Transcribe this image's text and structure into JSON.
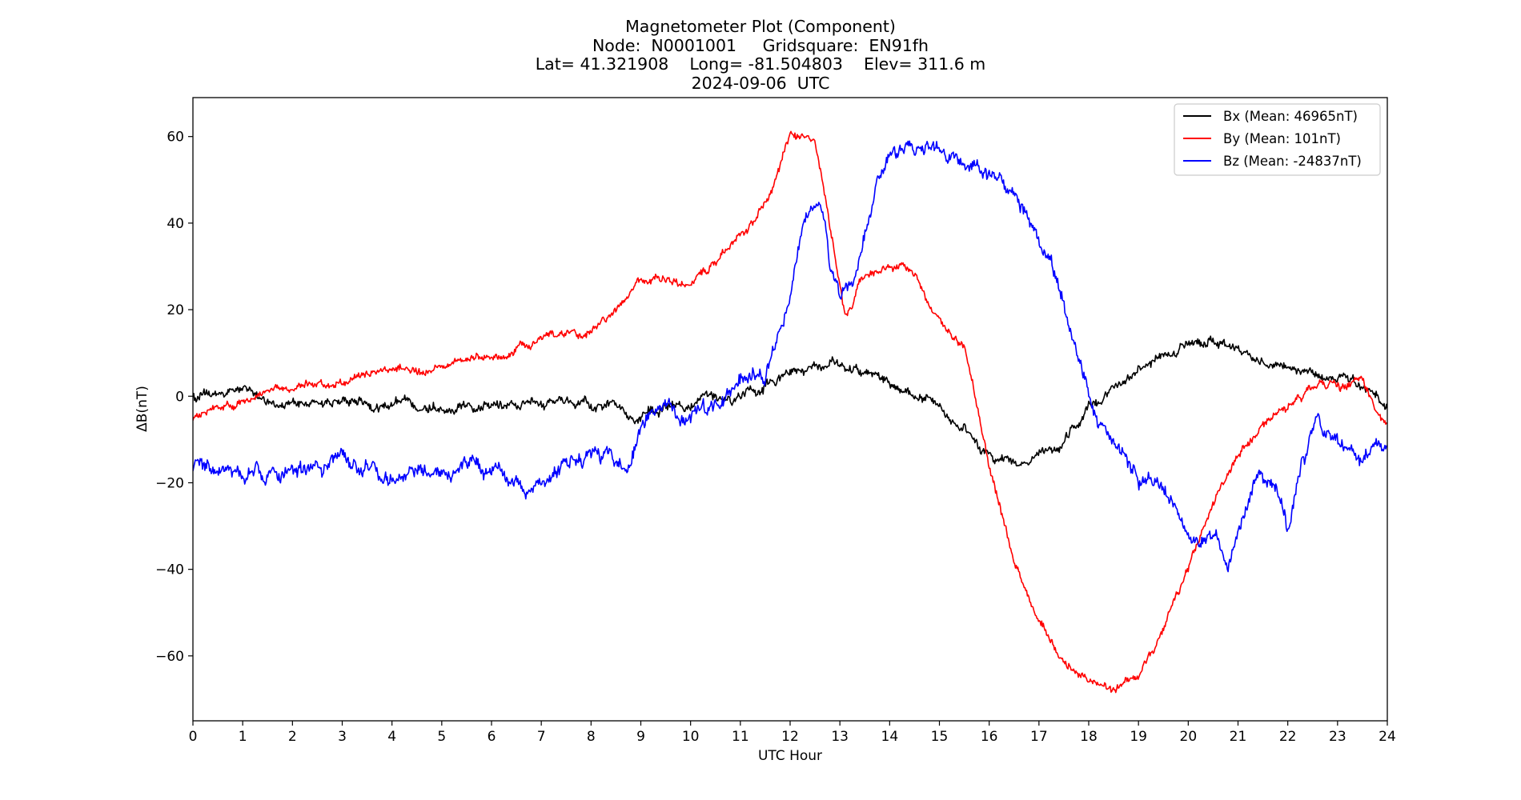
{
  "chart_data": {
    "type": "line",
    "title_lines": [
      "Magnetometer Plot (Component)",
      "Node:  N0001001     Gridsquare:  EN91fh",
      "Lat= 41.321908    Long= -81.504803    Elev= 311.6 m",
      "2024-09-06  UTC"
    ],
    "xlabel": "UTC Hour",
    "ylabel": "ΔB(nT)",
    "xlim": [
      0,
      24
    ],
    "ylim": [
      -75,
      69
    ],
    "xticks": [
      0,
      1,
      2,
      3,
      4,
      5,
      6,
      7,
      8,
      9,
      10,
      11,
      12,
      13,
      14,
      15,
      16,
      17,
      18,
      19,
      20,
      21,
      22,
      23,
      24
    ],
    "yticks": [
      -60,
      -40,
      -20,
      0,
      20,
      40,
      60
    ],
    "ytick_labels": [
      "−60",
      "−40",
      "−20",
      "0",
      "20",
      "40",
      "60"
    ],
    "grid": false,
    "legend_position": "top-right",
    "series": [
      {
        "name": "Bx (Mean: 46965nT)",
        "color": "#000000",
        "noise": 1.2,
        "x": [
          0,
          0.5,
          1,
          1.5,
          2,
          2.5,
          3,
          3.5,
          4,
          4.5,
          5,
          5.5,
          6,
          6.5,
          7,
          7.5,
          8,
          8.5,
          9,
          9.5,
          10,
          10.5,
          11,
          11.5,
          12,
          12.5,
          13,
          13.5,
          14,
          14.5,
          15,
          15.5,
          16,
          16.5,
          17,
          17.5,
          18,
          18.5,
          19,
          19.5,
          20,
          20.5,
          21,
          21.5,
          22,
          22.5,
          23,
          23.5,
          24
        ],
        "y": [
          0,
          0,
          2,
          -1,
          -2,
          -2,
          -1,
          -2,
          -2,
          -2,
          -2,
          -2,
          -1,
          -2,
          -2,
          -2,
          -2,
          -2,
          -4,
          -3,
          -3,
          -1,
          0,
          3,
          6,
          6,
          8,
          5,
          3,
          0,
          -3,
          -7,
          -14,
          -16,
          -14,
          -11,
          -3,
          2,
          6,
          9,
          11,
          13,
          11,
          8,
          7,
          5,
          4,
          2,
          -2
        ]
      },
      {
        "name": "By (Mean: 101nT)",
        "color": "#ff0000",
        "noise": 1.0,
        "x": [
          0,
          0.5,
          1,
          1.5,
          2,
          2.5,
          3,
          3.5,
          4,
          4.5,
          5,
          5.5,
          6,
          6.5,
          7,
          7.5,
          8,
          8.5,
          9,
          9.5,
          10,
          10.5,
          11,
          11.5,
          12,
          12.5,
          12.8,
          13.1,
          13.5,
          14,
          14.3,
          14.5,
          15,
          15.5,
          16,
          16.5,
          17,
          17.5,
          18,
          18.5,
          19,
          19.5,
          20,
          20.5,
          21,
          21.5,
          22,
          22.5,
          23,
          23.5,
          24
        ],
        "y": [
          -5,
          -3,
          -2,
          0,
          2,
          3,
          3,
          5,
          6,
          6,
          7,
          8,
          9,
          11,
          13,
          14,
          15,
          20,
          27,
          27,
          26,
          31,
          37,
          45,
          60,
          59,
          40,
          20,
          27,
          30,
          30,
          28,
          17,
          10,
          -16,
          -38,
          -52,
          -61,
          -66,
          -67,
          -65,
          -55,
          -40,
          -24,
          -14,
          -6,
          -2,
          3,
          3,
          3,
          -8
        ]
      },
      {
        "name": "Bz (Mean: -24837nT)",
        "color": "#0000ff",
        "noise": 1.8,
        "x": [
          0,
          0.5,
          1,
          1.5,
          2,
          2.5,
          3,
          3.5,
          4,
          4.5,
          5,
          5.5,
          6,
          6.5,
          6.7,
          7,
          7.5,
          7.8,
          8,
          8.5,
          8.8,
          9,
          9.5,
          10,
          10.5,
          11,
          11.5,
          12,
          12.3,
          12.6,
          12.8,
          13,
          13.3,
          13.6,
          14,
          14.5,
          15,
          15.5,
          16,
          16.5,
          17,
          17.5,
          18,
          18.4,
          18.7,
          19,
          19.5,
          20,
          20.3,
          20.6,
          20.8,
          21,
          21.4,
          21.8,
          22,
          22.3,
          22.6,
          23,
          23.5,
          24
        ],
        "y": [
          -17,
          -18,
          -19,
          -17,
          -17,
          -17,
          -16,
          -16,
          -18,
          -17,
          -17,
          -17,
          -17,
          -19,
          -24,
          -19,
          -15,
          -15,
          -12,
          -15,
          -17,
          -6,
          -3,
          -5,
          -1,
          3,
          5,
          22,
          42,
          44,
          30,
          24,
          30,
          45,
          55,
          57,
          57,
          53,
          51,
          48,
          35,
          22,
          0,
          -8,
          -15,
          -20,
          -22,
          -30,
          -33,
          -32,
          -40,
          -32,
          -18,
          -22,
          -30,
          -15,
          -5,
          -10,
          -14,
          -12
        ]
      }
    ]
  }
}
